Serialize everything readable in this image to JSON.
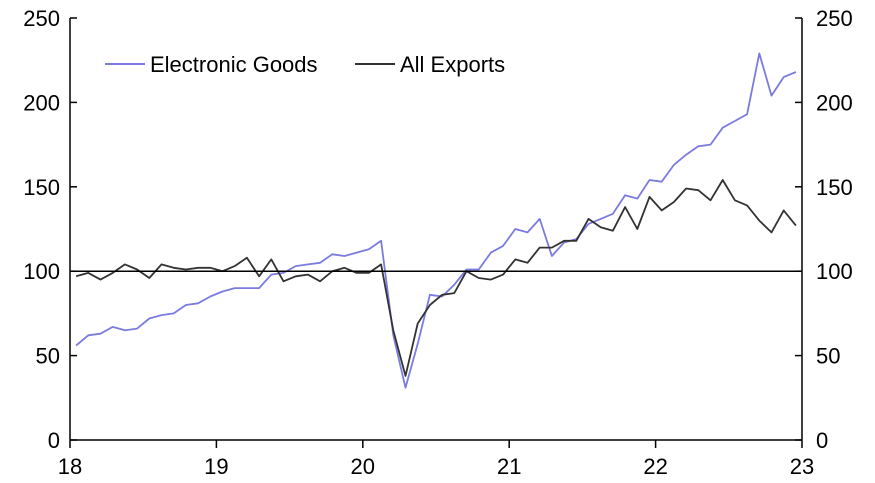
{
  "chart_data": {
    "type": "line",
    "x_start": "18",
    "xlim": [
      18,
      23
    ],
    "x_ticks": [
      "18",
      "19",
      "20",
      "21",
      "22",
      "23"
    ],
    "ylim": [
      0,
      250
    ],
    "y_ticks": [
      "0",
      "50",
      "100",
      "150",
      "200",
      "250"
    ],
    "reference_line": 100,
    "legend_position": "top-left",
    "grid": false,
    "series": [
      {
        "name": "Electronic Goods",
        "color": "#7b7be0",
        "values": [
          56,
          62,
          63,
          67,
          65,
          66,
          72,
          74,
          75,
          80,
          81,
          85,
          88,
          90,
          90,
          90,
          98,
          99,
          103,
          104,
          105,
          110,
          109,
          111,
          113,
          118,
          62,
          31,
          57,
          86,
          85,
          92,
          101,
          101,
          111,
          115,
          125,
          123,
          131,
          109,
          117,
          119,
          128,
          131,
          134,
          145,
          143,
          154,
          153,
          163,
          169,
          174,
          175,
          185,
          189,
          193,
          229,
          204,
          215,
          218
        ]
      },
      {
        "name": "All Exports",
        "color": "#333333",
        "values": [
          97,
          99,
          95,
          99,
          104,
          101,
          96,
          104,
          102,
          101,
          102,
          102,
          100,
          103,
          108,
          97,
          107,
          94,
          97,
          98,
          94,
          100,
          102,
          99,
          99,
          104,
          65,
          38,
          69,
          80,
          86,
          87,
          100,
          96,
          95,
          98,
          107,
          105,
          114,
          114,
          118,
          118,
          131,
          126,
          124,
          138,
          125,
          144,
          136,
          141,
          149,
          148,
          142,
          154,
          142,
          139,
          130,
          123,
          136,
          127
        ]
      }
    ]
  }
}
